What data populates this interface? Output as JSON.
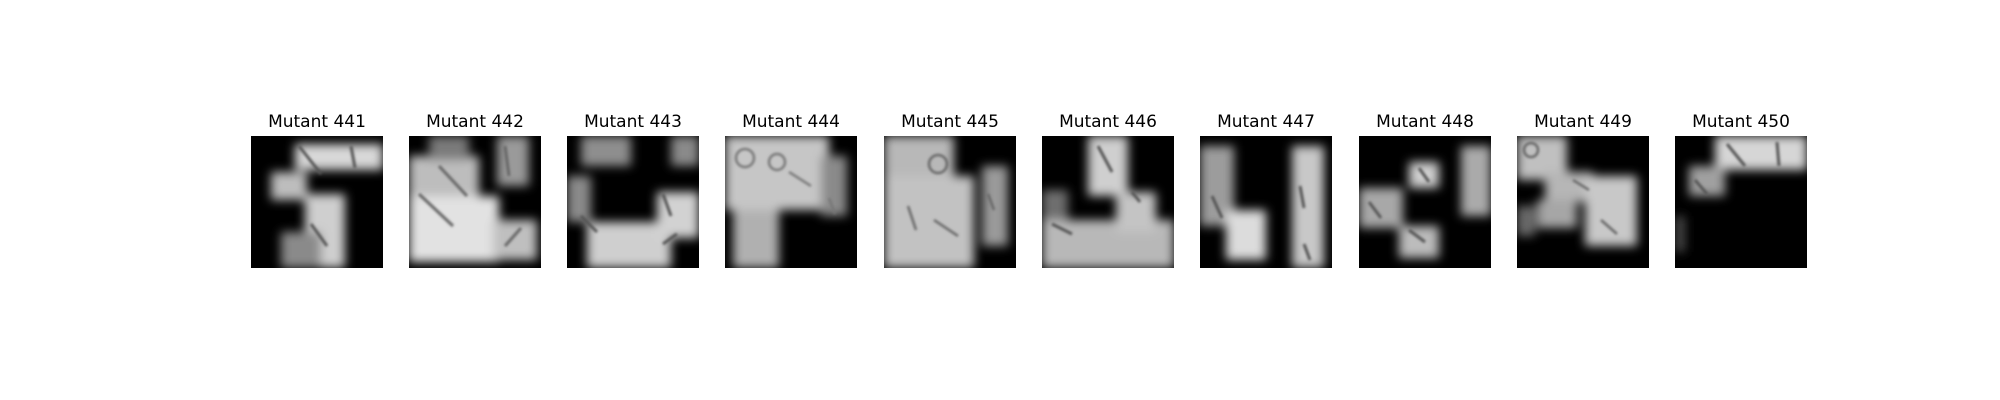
{
  "figure": {
    "panels": [
      {
        "title": "Mutant 441"
      },
      {
        "title": "Mutant 442"
      },
      {
        "title": "Mutant 443"
      },
      {
        "title": "Mutant 444"
      },
      {
        "title": "Mutant 445"
      },
      {
        "title": "Mutant 446"
      },
      {
        "title": "Mutant 447"
      },
      {
        "title": "Mutant 448"
      },
      {
        "title": "Mutant 449"
      },
      {
        "title": "Mutant 450"
      }
    ]
  }
}
